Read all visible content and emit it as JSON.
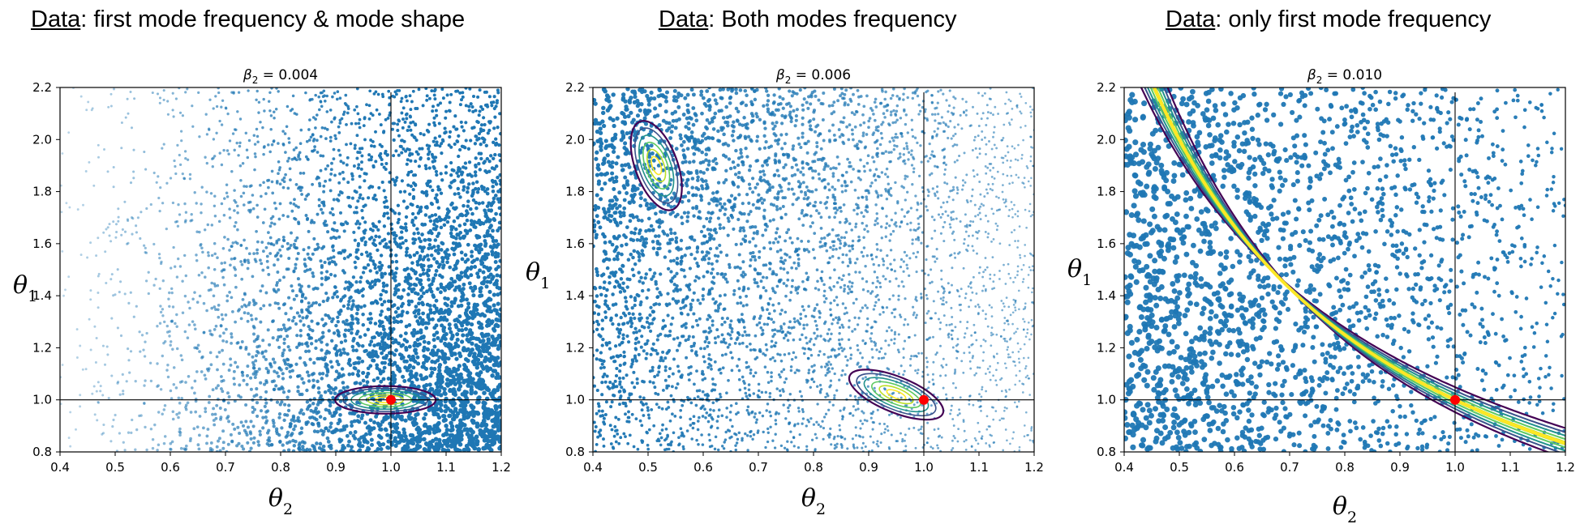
{
  "chart_data": [
    {
      "type": "scatter",
      "heading": {
        "underlined": "Data",
        "rest": ": first mode frequency & mode shape"
      },
      "title": {
        "symbol": "β",
        "index": "2",
        "value": " = 0.004"
      },
      "xlabel": {
        "symbol": "θ",
        "index": "2"
      },
      "ylabel": {
        "symbol": "θ",
        "index": "1"
      },
      "xlim": [
        0.4,
        1.2
      ],
      "ylim": [
        0.8,
        2.2
      ],
      "xticks": [
        "0.4",
        "0.5",
        "0.6",
        "0.7",
        "0.8",
        "0.9",
        "1.0",
        "1.1",
        "1.2"
      ],
      "yticks": [
        "0.8",
        "1.0",
        "1.2",
        "1.4",
        "1.6",
        "1.8",
        "2.0",
        "2.2"
      ],
      "reference_lines": {
        "x": 1.0,
        "y": 1.0
      },
      "true_point": {
        "x": 1.0,
        "y": 1.0,
        "color": "#ff0000"
      },
      "point_color": "#1f77b4",
      "scatter_description": "sample density increases toward large θ2 and θ1 near 1.0; sparse faint points toward upper-left",
      "posterior_contours": {
        "center": [
          0.99,
          1.0
        ],
        "shape": "horizontal ellipse",
        "levels": 6
      }
    },
    {
      "type": "scatter",
      "heading": {
        "underlined": "Data",
        "rest": ": Both modes frequency"
      },
      "title": {
        "symbol": "β",
        "index": "2",
        "value": " = 0.006"
      },
      "xlabel": {
        "symbol": "θ",
        "index": "2"
      },
      "ylabel": {
        "symbol": "θ",
        "index": "1"
      },
      "xlim": [
        0.4,
        1.2
      ],
      "ylim": [
        0.8,
        2.2
      ],
      "xticks": [
        "0.4",
        "0.5",
        "0.6",
        "0.7",
        "0.8",
        "0.9",
        "1.0",
        "1.1",
        "1.2"
      ],
      "yticks": [
        "0.8",
        "1.0",
        "1.2",
        "1.4",
        "1.6",
        "1.8",
        "2.0",
        "2.2"
      ],
      "reference_lines": {
        "x": 1.0,
        "y": 1.0
      },
      "true_point": {
        "x": 1.0,
        "y": 1.0,
        "color": "#ff0000"
      },
      "point_color": "#1f77b4",
      "scatter_description": "points spread over full domain, denser toward upper-left",
      "posterior_contours": [
        {
          "center": [
            0.515,
            1.9
          ],
          "shape": "tilted ellipse",
          "levels": 6
        },
        {
          "center": [
            0.95,
            1.02
          ],
          "shape": "tilted ellipse",
          "levels": 6
        }
      ]
    },
    {
      "type": "scatter",
      "heading": {
        "underlined": "Data",
        "rest": ": only first mode frequency"
      },
      "title": {
        "symbol": "β",
        "index": "2",
        "value": " = 0.010"
      },
      "xlabel": {
        "symbol": "θ",
        "index": "2"
      },
      "ylabel": {
        "symbol": "θ",
        "index": "1"
      },
      "xlim": [
        0.4,
        1.2
      ],
      "ylim": [
        0.8,
        2.2
      ],
      "xticks": [
        "0.4",
        "0.5",
        "0.6",
        "0.7",
        "0.8",
        "0.9",
        "1.0",
        "1.1",
        "1.2"
      ],
      "yticks": [
        "0.8",
        "1.0",
        "1.2",
        "1.4",
        "1.6",
        "1.8",
        "2.0",
        "2.2"
      ],
      "reference_lines": {
        "x": 1.0,
        "y": 1.0
      },
      "true_point": {
        "x": 1.0,
        "y": 1.0,
        "color": "#ff0000"
      },
      "point_color": "#1f77b4",
      "scatter_description": "large points spread over domain, denser toward lower-left",
      "posterior_contours": {
        "shape": "curved ridge θ1·θ2 ≈ 1",
        "x_range": [
          0.46,
          1.2
        ],
        "levels": 6
      }
    }
  ],
  "contour_colors": [
    "#440154",
    "#3b528b",
    "#21918c",
    "#5ec962",
    "#bddf26",
    "#fde725"
  ]
}
